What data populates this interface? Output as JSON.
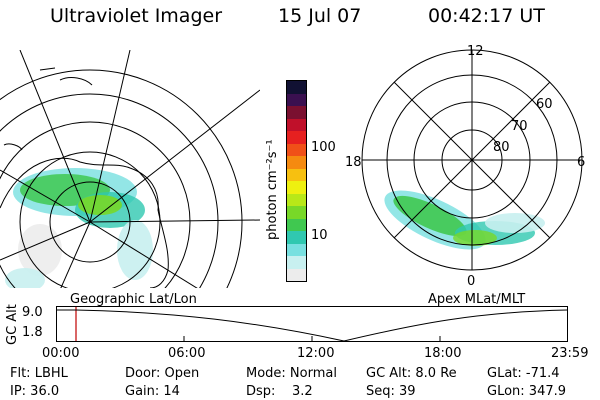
{
  "header": {
    "instrument": "Ultraviolet Imager",
    "date": "15 Jul 07",
    "time": "00:42:17 UT"
  },
  "colorbar": {
    "label": "photon cm⁻²s⁻¹",
    "ticks": [
      "100",
      "10"
    ],
    "colors": [
      "#111133",
      "#3a1050",
      "#7a1030",
      "#c0102a",
      "#e62020",
      "#f05018",
      "#f58a10",
      "#f7c010",
      "#eef010",
      "#b8e818",
      "#78d828",
      "#40c850",
      "#30c8b0",
      "#78e0e0",
      "#c8f0f0",
      "#ececec"
    ]
  },
  "left_map": {
    "caption": "Geographic Lat/Lon"
  },
  "right_map": {
    "caption": "Apex MLat/MLT",
    "mlt_labels": {
      "top": "12",
      "left": "18",
      "right": "6",
      "bottom": "0"
    },
    "mlat_labels": [
      "60",
      "70",
      "80"
    ]
  },
  "altitude_plot": {
    "ylabel": "GC Alt",
    "ytick_top": "9.0",
    "ytick_bottom": "1.8",
    "xticks": [
      "00:00",
      "06:00",
      "12:00",
      "18:00",
      "23:59"
    ],
    "marker_color": "#cc3333"
  },
  "footer": {
    "row1": [
      "Flt: LBHL",
      "Door: Open",
      "Mode: Normal",
      "GC Alt: 8.0 Re",
      "GLat: -71.4"
    ],
    "row2": [
      "IP: 36.0",
      "Gain: 14",
      "Dsp:    3.2",
      "Seq: 39",
      "GLon: 347.9"
    ]
  }
}
